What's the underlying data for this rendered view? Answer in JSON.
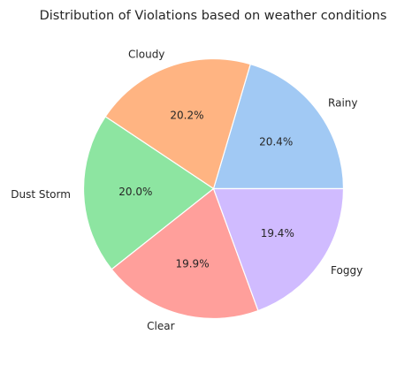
{
  "chart_data": {
    "type": "pie",
    "title": "Distribution of Violations based on weather conditions",
    "categories": [
      "Rainy",
      "Cloudy",
      "Dust Storm",
      "Clear",
      "Foggy"
    ],
    "values": [
      20.4,
      20.2,
      20.0,
      19.9,
      19.4
    ],
    "value_labels": [
      "20.4%",
      "20.2%",
      "20.0%",
      "19.9%",
      "19.4%"
    ],
    "colors": [
      "#a1c9f4",
      "#ffb482",
      "#8de5a1",
      "#ff9f9b",
      "#d0bbff"
    ],
    "start_angle_deg": 0,
    "direction": "counterclockwise",
    "legend": "none"
  }
}
